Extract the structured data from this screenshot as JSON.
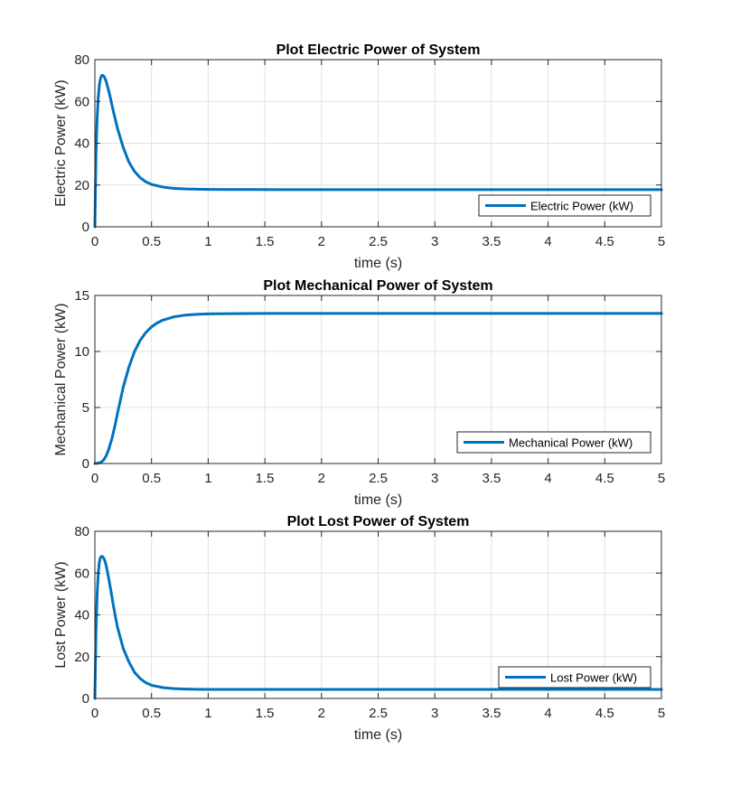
{
  "chart_data": [
    {
      "type": "line",
      "title": "Plot Electric Power of System",
      "xlabel": "time (s)",
      "ylabel": "Electric Power (kW)",
      "xlim": [
        0,
        5
      ],
      "ylim": [
        0,
        80
      ],
      "xticks": [
        0,
        0.5,
        1,
        1.5,
        2,
        2.5,
        3,
        3.5,
        4,
        4.5,
        5
      ],
      "xtick_labels": [
        "0",
        "0.5",
        "1",
        "1.5",
        "2",
        "2.5",
        "3",
        "3.5",
        "4",
        "4.5",
        "5"
      ],
      "yticks": [
        0,
        20,
        40,
        60,
        80
      ],
      "ytick_labels": [
        "0",
        "20",
        "40",
        "60",
        "80"
      ],
      "grid": true,
      "legend": "bottom-right",
      "series": [
        {
          "name": "Electric Power (kW)",
          "color": "#0072BD",
          "x": [
            0,
            0.01,
            0.02,
            0.03,
            0.04,
            0.05,
            0.06,
            0.07,
            0.08,
            0.09,
            0.1,
            0.11,
            0.12,
            0.14,
            0.16,
            0.18,
            0.2,
            0.25,
            0.3,
            0.35,
            0.4,
            0.45,
            0.5,
            0.6,
            0.7,
            0.8,
            0.9,
            1.0,
            1.2,
            1.4,
            1.6,
            2,
            2.5,
            3,
            3.5,
            4,
            4.5,
            5
          ],
          "y": [
            0,
            35,
            52,
            62,
            68,
            71,
            72.4,
            72.5,
            72,
            71,
            69.5,
            67.5,
            65.5,
            61,
            56,
            51.5,
            47,
            38,
            31,
            26.5,
            23.5,
            21.5,
            20.3,
            19,
            18.4,
            18.1,
            18,
            17.9,
            17.85,
            17.82,
            17.8,
            17.8,
            17.8,
            17.8,
            17.8,
            17.8,
            17.8,
            17.8
          ]
        }
      ]
    },
    {
      "type": "line",
      "title": "Plot Mechanical Power of System",
      "xlabel": "time (s)",
      "ylabel": "Mechanical Power (kW)",
      "xlim": [
        0,
        5
      ],
      "ylim": [
        0,
        15
      ],
      "xticks": [
        0,
        0.5,
        1,
        1.5,
        2,
        2.5,
        3,
        3.5,
        4,
        4.5,
        5
      ],
      "xtick_labels": [
        "0",
        "0.5",
        "1",
        "1.5",
        "2",
        "2.5",
        "3",
        "3.5",
        "4",
        "4.5",
        "5"
      ],
      "yticks": [
        0,
        5,
        10,
        15
      ],
      "ytick_labels": [
        "0",
        "5",
        "10",
        "15"
      ],
      "grid": true,
      "legend": "bottom-right",
      "series": [
        {
          "name": "Mechanical Power (kW)",
          "color": "#0072BD",
          "x": [
            0,
            0.03,
            0.06,
            0.08,
            0.1,
            0.12,
            0.15,
            0.18,
            0.2,
            0.25,
            0.3,
            0.35,
            0.4,
            0.45,
            0.5,
            0.55,
            0.6,
            0.7,
            0.8,
            0.9,
            1.0,
            1.2,
            1.5,
            2,
            2.5,
            3,
            3.5,
            4,
            4.5,
            5
          ],
          "y": [
            0,
            0.03,
            0.15,
            0.35,
            0.7,
            1.2,
            2.2,
            3.5,
            4.5,
            6.8,
            8.6,
            10.0,
            11.0,
            11.7,
            12.2,
            12.55,
            12.8,
            13.1,
            13.25,
            13.32,
            13.36,
            13.38,
            13.4,
            13.4,
            13.4,
            13.4,
            13.4,
            13.4,
            13.4,
            13.4
          ]
        }
      ]
    },
    {
      "type": "line",
      "title": "Plot Lost Power of System",
      "xlabel": "time (s)",
      "ylabel": "Lost Power (kW)",
      "xlim": [
        0,
        5
      ],
      "ylim": [
        0,
        80
      ],
      "xticks": [
        0,
        0.5,
        1,
        1.5,
        2,
        2.5,
        3,
        3.5,
        4,
        4.5,
        5
      ],
      "xtick_labels": [
        "0",
        "0.5",
        "1",
        "1.5",
        "2",
        "2.5",
        "3",
        "3.5",
        "4",
        "4.5",
        "5"
      ],
      "yticks": [
        0,
        20,
        40,
        60,
        80
      ],
      "ytick_labels": [
        "0",
        "20",
        "40",
        "60",
        "80"
      ],
      "grid": true,
      "legend": "bottom-right",
      "series": [
        {
          "name": "Lost Power (kW)",
          "color": "#0072BD",
          "x": [
            0,
            0.01,
            0.02,
            0.03,
            0.04,
            0.05,
            0.06,
            0.07,
            0.08,
            0.09,
            0.1,
            0.11,
            0.12,
            0.14,
            0.16,
            0.18,
            0.2,
            0.25,
            0.3,
            0.35,
            0.4,
            0.45,
            0.5,
            0.6,
            0.7,
            0.8,
            0.9,
            1.0,
            1.2,
            1.5,
            2,
            2.5,
            3,
            3.5,
            4,
            4.5,
            5
          ],
          "y": [
            0,
            32,
            50,
            60,
            65.5,
            67.5,
            68,
            67.8,
            67,
            65.5,
            63.5,
            61,
            58,
            52,
            45.5,
            39.5,
            34,
            24,
            17.5,
            12.5,
            9.5,
            7.5,
            6.3,
            5.2,
            4.7,
            4.5,
            4.4,
            4.35,
            4.3,
            4.3,
            4.3,
            4.3,
            4.3,
            4.3,
            4.3,
            4.3,
            4.3
          ]
        }
      ]
    }
  ]
}
